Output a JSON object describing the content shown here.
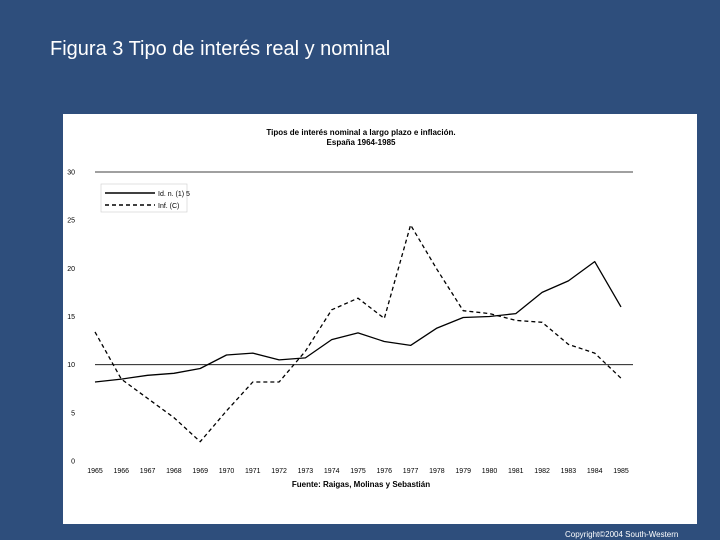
{
  "slide": {
    "title": "Figura 3 Tipo de interés real y  nominal",
    "copyright": "Copyright©2004  South-Western",
    "background": "#2e4e7c"
  },
  "chart_data": {
    "type": "line",
    "title": "Tipos de interés nominal a largo plazo e inflación.",
    "subtitle": "España 1964-1985",
    "xlabel": "Fuente: Raigas, Molinas y Sebastián",
    "ylabel": "",
    "ylim": [
      0,
      30
    ],
    "yticks": [
      0,
      5,
      10,
      15,
      20,
      25,
      30
    ],
    "gridlines_at": [
      10,
      30
    ],
    "categories": [
      "1965",
      "1966",
      "1967",
      "1968",
      "1969",
      "1970",
      "1971",
      "1972",
      "1973",
      "1974",
      "1975",
      "1976",
      "1977",
      "1978",
      "1979",
      "1980",
      "1981",
      "1982",
      "1983",
      "1984",
      "1985"
    ],
    "series": [
      {
        "name": "Id. n. (1) 5",
        "style": "solid",
        "values": [
          8.2,
          8.5,
          8.9,
          9.1,
          9.6,
          11.0,
          11.2,
          10.5,
          10.7,
          12.6,
          13.3,
          12.4,
          12.0,
          13.8,
          14.9,
          15.0,
          15.3,
          17.5,
          18.7,
          20.7,
          16.0
        ]
      },
      {
        "name": "Inf. (C)",
        "style": "dashed",
        "values": [
          13.4,
          8.5,
          6.5,
          4.5,
          2.0,
          5.2,
          8.2,
          8.2,
          11.4,
          15.7,
          16.9,
          14.8,
          24.5,
          19.9,
          15.6,
          15.3,
          14.6,
          14.4,
          12.1,
          11.2,
          8.6
        ]
      }
    ],
    "legend_position": "top-left"
  }
}
